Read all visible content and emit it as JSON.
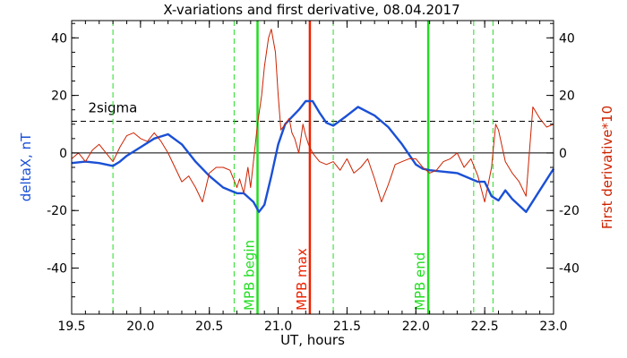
{
  "chart_data": {
    "type": "line",
    "title": "X-variations and first derivative, 08.04.2017",
    "xlabel": "UT, hours",
    "ylabel_left": "deltaX, nT",
    "ylabel_right": "First derivative*10",
    "xlim": [
      19.5,
      23.0
    ],
    "ylim": [
      -56,
      46
    ],
    "x_ticks": [
      {
        "value": 19.5,
        "label": "19.5"
      },
      {
        "value": 20.0,
        "label": "20.0"
      },
      {
        "value": 20.5,
        "label": "20.5"
      },
      {
        "value": 21.0,
        "label": "21.0"
      },
      {
        "value": 21.5,
        "label": "21.5"
      },
      {
        "value": 22.0,
        "label": "22.0"
      },
      {
        "value": 22.5,
        "label": "22.5"
      },
      {
        "value": 23.0,
        "label": "23.0"
      }
    ],
    "y_ticks": [
      {
        "value": -40,
        "label": "-40"
      },
      {
        "value": -20,
        "label": "-20"
      },
      {
        "value": 0,
        "label": "0"
      },
      {
        "value": 20,
        "label": "20"
      },
      {
        "value": 40,
        "label": "40"
      }
    ],
    "grid": false,
    "colors": {
      "deltaX": "#1a50d6",
      "derivative": "#cc2200",
      "mpb": "#22dd22",
      "mpb_max": "#ee2200",
      "reference": "#000000",
      "ylabel_left": "#1a50d6",
      "ylabel_right": "#cc2200"
    },
    "series": [
      {
        "key": "deltaX",
        "x": [
          19.5,
          19.6,
          19.7,
          19.8,
          19.85,
          19.9,
          20.0,
          20.1,
          20.2,
          20.3,
          20.4,
          20.5,
          20.6,
          20.7,
          20.75,
          20.82,
          20.86,
          20.9,
          20.95,
          21.0,
          21.05,
          21.1,
          21.15,
          21.2,
          21.25,
          21.3,
          21.35,
          21.4,
          21.5,
          21.58,
          21.7,
          21.8,
          21.9,
          22.0,
          22.05,
          22.1,
          22.2,
          22.3,
          22.4,
          22.45,
          22.5,
          22.55,
          22.6,
          22.65,
          22.7,
          22.8,
          22.9,
          23.0
        ],
        "y": [
          -3.5,
          -3,
          -3.5,
          -4.5,
          -3,
          -1,
          2,
          5,
          6.5,
          3,
          -3,
          -8,
          -12,
          -14,
          -14,
          -17,
          -20.5,
          -18,
          -8,
          3,
          10,
          12.5,
          15,
          18,
          18,
          14,
          10.5,
          9.5,
          13,
          16,
          13,
          9,
          3,
          -4,
          -5.5,
          -6,
          -6.5,
          -7,
          -9,
          -10,
          -10,
          -15,
          -16.5,
          -13,
          -16,
          -20.5,
          -13,
          -5.5
        ]
      },
      {
        "key": "derivative",
        "x": [
          19.5,
          19.55,
          19.6,
          19.65,
          19.7,
          19.75,
          19.8,
          19.85,
          19.9,
          19.95,
          20.0,
          20.05,
          20.1,
          20.15,
          20.2,
          20.25,
          20.3,
          20.35,
          20.4,
          20.45,
          20.5,
          20.55,
          20.6,
          20.65,
          20.7,
          20.72,
          20.75,
          20.78,
          20.8,
          20.85,
          20.88,
          20.9,
          20.93,
          20.95,
          20.98,
          21.0,
          21.02,
          21.05,
          21.08,
          21.1,
          21.12,
          21.15,
          21.18,
          21.2,
          21.22,
          21.25,
          21.3,
          21.35,
          21.4,
          21.45,
          21.5,
          21.55,
          21.6,
          21.65,
          21.7,
          21.75,
          21.8,
          21.85,
          21.9,
          21.95,
          22.0,
          22.05,
          22.1,
          22.15,
          22.2,
          22.25,
          22.3,
          22.35,
          22.4,
          22.45,
          22.5,
          22.55,
          22.58,
          22.6,
          22.65,
          22.7,
          22.75,
          22.8,
          22.85,
          22.9,
          22.95,
          23.0
        ],
        "y": [
          -2,
          0,
          -3,
          1,
          3,
          0,
          -3,
          2,
          6,
          7,
          5,
          4,
          7,
          4,
          0,
          -5,
          -10,
          -8,
          -12,
          -17,
          -7,
          -5,
          -5,
          -6,
          -12,
          -9,
          -14,
          -5,
          -12,
          10,
          20,
          30,
          40,
          43,
          35,
          20,
          8,
          10,
          12,
          7,
          5,
          0,
          10,
          6,
          3,
          0,
          -3,
          -4,
          -3,
          -6,
          -2,
          -7,
          -5,
          -2,
          -9,
          -17,
          -11,
          -4,
          -3,
          -2,
          -2,
          -5,
          -7,
          -6,
          -3,
          -2,
          0,
          -5,
          -2,
          -8,
          -17,
          -5,
          10,
          8,
          -3,
          -7,
          -10,
          -15,
          16,
          12,
          9,
          10
        ]
      }
    ],
    "reference_lines": [
      {
        "key": "zero",
        "y": 0,
        "style": "solid"
      },
      {
        "key": "two_sigma",
        "y": 11,
        "style": "dashed",
        "label": "2sigma"
      }
    ],
    "vertical_markers": [
      {
        "x": 19.8,
        "style": "dashed",
        "color_key": "mpb"
      },
      {
        "x": 20.68,
        "style": "dashed",
        "color_key": "mpb"
      },
      {
        "x": 20.85,
        "style": "solid",
        "color_key": "mpb",
        "label": "MPB begin"
      },
      {
        "x": 21.23,
        "style": "solid",
        "color_key": "mpb_max",
        "label": "MPB max"
      },
      {
        "x": 21.4,
        "style": "dashed",
        "color_key": "mpb"
      },
      {
        "x": 22.09,
        "style": "solid",
        "color_key": "mpb",
        "label": "MPB end"
      },
      {
        "x": 22.42,
        "style": "dashed",
        "color_key": "mpb"
      },
      {
        "x": 22.56,
        "style": "dashed",
        "color_key": "mpb"
      }
    ]
  }
}
